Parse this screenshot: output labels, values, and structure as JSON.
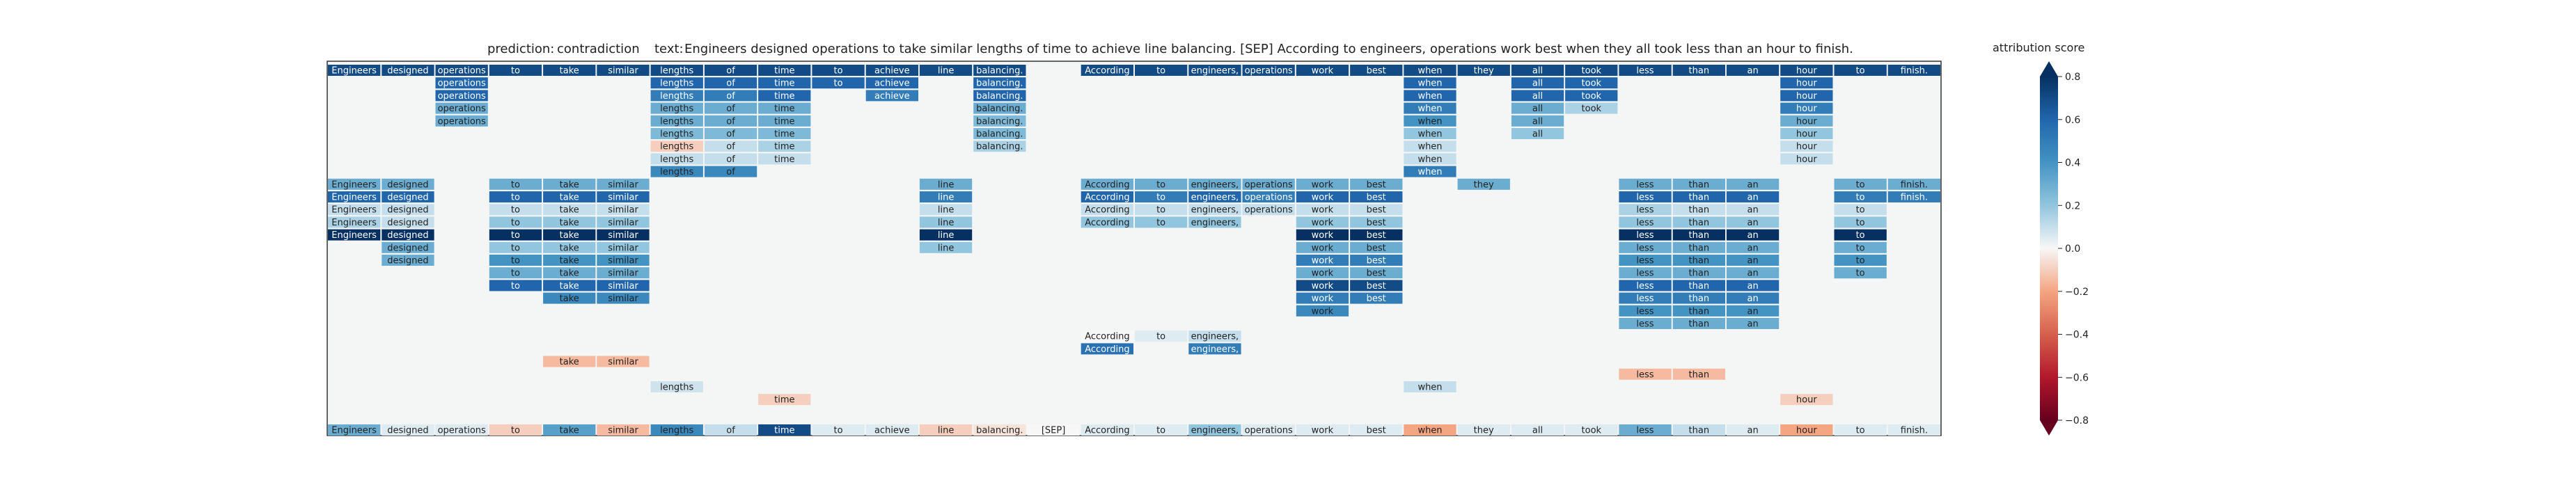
{
  "title": {
    "prediction_label": "prediction:",
    "prediction": "contradiction",
    "text_label": "text:",
    "text": "Engineers designed operations to take similar lengths of time to achieve line balancing. [SEP] According to engineers, operations work best when they all took less than an hour to finish."
  },
  "colorbar": {
    "label": "attribution score",
    "ticks": [
      "0.8",
      "0.6",
      "0.4",
      "0.2",
      "0.0",
      "−0.2",
      "−0.4",
      "−0.6",
      "−0.8"
    ],
    "tick_values": [
      0.8,
      0.6,
      0.4,
      0.2,
      0.0,
      -0.2,
      -0.4,
      -0.6,
      -0.8
    ],
    "range": [
      -0.8,
      0.8
    ],
    "colormap": "RdBu",
    "extend": "both"
  },
  "chart_data": {
    "type": "heatmap",
    "tokens": [
      "Engineers",
      "designed",
      "operations",
      "to",
      "take",
      "similar",
      "lengths",
      "of",
      "time",
      "to",
      "achieve",
      "line",
      "balancing.",
      "[SEP]",
      "According",
      "to",
      "engineers,",
      "operations",
      "work",
      "best",
      "when",
      "they",
      "all",
      "took",
      "less",
      "than",
      "an",
      "hour",
      "to",
      "finish."
    ],
    "layers": 27,
    "layer_rows": [
      {
        "row": 1,
        "cells": {
          "0": 0.7,
          "1": 0.7,
          "2": 0.7,
          "3": 0.7,
          "4": 0.7,
          "5": 0.7,
          "6": 0.7,
          "7": 0.7,
          "8": 0.7,
          "9": 0.7,
          "10": 0.7,
          "11": 0.7,
          "12": 0.7,
          "14": 0.7,
          "15": 0.7,
          "16": 0.7,
          "17": 0.7,
          "18": 0.7,
          "19": 0.7,
          "20": 0.7,
          "21": 0.7,
          "22": 0.7,
          "23": 0.7,
          "24": 0.7,
          "25": 0.7,
          "26": 0.7,
          "27": 0.7,
          "28": 0.7,
          "29": 0.7
        }
      },
      {
        "row": 2,
        "cells": {
          "2": 0.6,
          "6": 0.6,
          "7": 0.6,
          "8": 0.6,
          "9": 0.6,
          "10": 0.6,
          "12": 0.6,
          "20": 0.6,
          "22": 0.6,
          "23": 0.6,
          "27": 0.6
        }
      },
      {
        "row": 3,
        "cells": {
          "2": 0.6,
          "6": 0.5,
          "7": 0.5,
          "8": 0.6,
          "10": 0.5,
          "12": 0.6,
          "20": 0.6,
          "22": 0.6,
          "23": 0.6,
          "27": 0.6
        }
      },
      {
        "row": 4,
        "cells": {
          "2": 0.3,
          "6": 0.3,
          "7": 0.3,
          "8": 0.3,
          "12": 0.3,
          "20": 0.5,
          "22": 0.3,
          "23": 0.15,
          "27": 0.5
        }
      },
      {
        "row": 5,
        "cells": {
          "2": 0.3,
          "6": 0.3,
          "7": 0.3,
          "8": 0.3,
          "12": 0.25,
          "20": 0.4,
          "22": 0.3,
          "27": 0.3
        }
      },
      {
        "row": 6,
        "cells": {
          "6": 0.25,
          "7": 0.25,
          "8": 0.25,
          "12": 0.25,
          "20": 0.2,
          "22": 0.2,
          "27": 0.2
        }
      },
      {
        "row": 7,
        "cells": {
          "6": -0.1,
          "7": 0.1,
          "8": 0.15,
          "12": 0.15,
          "20": 0.1,
          "27": 0.1
        }
      },
      {
        "row": 8,
        "cells": {
          "6": 0.1,
          "7": 0.1,
          "8": 0.1,
          "20": 0.1,
          "27": 0.1
        }
      },
      {
        "row": 9,
        "cells": {
          "6": 0.45,
          "7": 0.45,
          "20": 0.5
        }
      },
      {
        "row": 10,
        "cells": {
          "0": 0.3,
          "1": 0.3,
          "3": 0.3,
          "4": 0.3,
          "5": 0.3,
          "11": 0.3,
          "14": 0.3,
          "15": 0.3,
          "16": 0.3,
          "17": 0.3,
          "18": 0.3,
          "19": 0.3,
          "21": 0.3,
          "24": 0.3,
          "25": 0.3,
          "26": 0.3,
          "28": 0.3,
          "29": 0.3
        }
      },
      {
        "row": 11,
        "cells": {
          "0": 0.6,
          "1": 0.6,
          "3": 0.6,
          "4": 0.6,
          "5": 0.6,
          "11": 0.5,
          "14": 0.6,
          "15": 0.5,
          "16": 0.6,
          "17": 0.5,
          "18": 0.6,
          "19": 0.6,
          "24": 0.6,
          "25": 0.6,
          "26": 0.6,
          "28": 0.5,
          "29": 0.5
        }
      },
      {
        "row": 12,
        "cells": {
          "0": 0.1,
          "1": 0.1,
          "3": 0.1,
          "4": 0.1,
          "5": 0.1,
          "11": 0.1,
          "14": 0.1,
          "15": 0.1,
          "16": 0.1,
          "17": 0.1,
          "18": 0.1,
          "19": 0.1,
          "24": 0.15,
          "25": 0.1,
          "26": 0.1,
          "28": 0.1
        }
      },
      {
        "row": 13,
        "cells": {
          "0": 0.15,
          "1": 0.1,
          "3": 0.2,
          "4": 0.2,
          "5": 0.2,
          "11": 0.2,
          "14": 0.2,
          "15": 0.2,
          "16": 0.2,
          "18": 0.2,
          "19": 0.2,
          "24": 0.2,
          "25": 0.2,
          "26": 0.2,
          "28": 0.2
        }
      },
      {
        "row": 14,
        "cells": {
          "0": 0.8,
          "1": 0.8,
          "3": 0.8,
          "4": 0.8,
          "5": 0.8,
          "11": 0.8,
          "18": 0.8,
          "19": 0.8,
          "24": 0.8,
          "25": 0.8,
          "26": 0.8,
          "28": 0.8
        }
      },
      {
        "row": 15,
        "cells": {
          "1": 0.3,
          "3": 0.2,
          "4": 0.2,
          "5": 0.2,
          "11": 0.2,
          "18": 0.3,
          "19": 0.3,
          "24": 0.3,
          "25": 0.3,
          "26": 0.3,
          "28": 0.3
        }
      },
      {
        "row": 16,
        "cells": {
          "1": 0.3,
          "3": 0.4,
          "4": 0.4,
          "5": 0.4,
          "18": 0.5,
          "19": 0.5,
          "24": 0.4,
          "25": 0.4,
          "26": 0.4,
          "28": 0.4
        }
      },
      {
        "row": 17,
        "cells": {
          "3": 0.3,
          "4": 0.3,
          "5": 0.3,
          "18": 0.3,
          "19": 0.3,
          "24": 0.3,
          "25": 0.3,
          "26": 0.3,
          "28": 0.3
        }
      },
      {
        "row": 18,
        "cells": {
          "3": 0.6,
          "4": 0.6,
          "5": 0.6,
          "18": 0.7,
          "19": 0.7,
          "24": 0.6,
          "25": 0.6,
          "26": 0.6
        }
      },
      {
        "row": 19,
        "cells": {
          "4": 0.45,
          "5": 0.45,
          "18": 0.5,
          "19": 0.5,
          "24": 0.5,
          "25": 0.5,
          "26": 0.5
        }
      },
      {
        "row": 20,
        "cells": {
          "18": 0.45,
          "24": 0.4,
          "25": 0.4,
          "26": 0.4
        }
      },
      {
        "row": 21,
        "cells": {
          "24": 0.3,
          "25": 0.3,
          "26": 0.3
        }
      },
      {
        "row": 22,
        "cells": {
          "14": 0.0,
          "15": 0.05,
          "16": 0.1
        }
      },
      {
        "row": 23,
        "cells": {
          "14": 0.55,
          "16": 0.5
        }
      },
      {
        "row": 24,
        "cells": {
          "4": -0.15,
          "5": -0.15
        }
      },
      {
        "row": 25,
        "cells": {
          "24": -0.15,
          "25": -0.15
        }
      },
      {
        "row": 26,
        "cells": {
          "6": 0.08,
          "20": 0.1
        }
      },
      {
        "row": 27,
        "cells": {
          "8": -0.1,
          "27": -0.1
        }
      }
    ],
    "summary_row": [
      0.3,
      0.05,
      0.05,
      -0.1,
      0.35,
      -0.15,
      0.45,
      0.1,
      0.7,
      0.05,
      0.05,
      -0.1,
      -0.05,
      0.0,
      0.05,
      0.05,
      0.2,
      0.05,
      0.05,
      0.05,
      -0.2,
      0.05,
      0.05,
      0.05,
      0.3,
      0.1,
      0.05,
      -0.2,
      0.05,
      0.05
    ]
  }
}
